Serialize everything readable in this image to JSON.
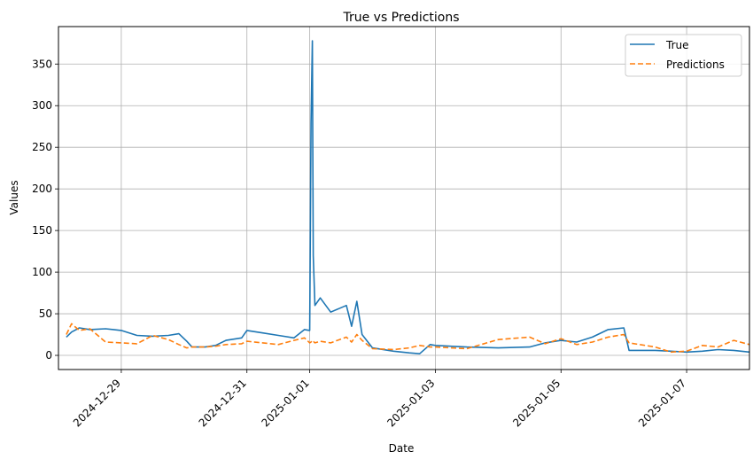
{
  "chart_data": {
    "type": "line",
    "title": "True vs Predictions",
    "xlabel": "Date",
    "ylabel": "Values",
    "grid": true,
    "legend_placement": "top-right",
    "x_range": [
      "2024-12-28",
      "2025-01-08"
    ],
    "ylim": [
      -17,
      395
    ],
    "x_ticks": [
      "2024-12-29",
      "2024-12-31",
      "2025-01-01",
      "2025-01-03",
      "2025-01-05",
      "2025-01-07"
    ],
    "y_ticks": [
      "0",
      "50",
      "100",
      "150",
      "200",
      "250",
      "300",
      "350"
    ],
    "series": [
      {
        "name": "True",
        "color": "#1f77b4",
        "dash": "solid",
        "points": [
          [
            "2024-12-28 03:00",
            22
          ],
          [
            "2024-12-28 05:00",
            28
          ],
          [
            "2024-12-28 08:00",
            33
          ],
          [
            "2024-12-28 12:00",
            31
          ],
          [
            "2024-12-28 18:00",
            32
          ],
          [
            "2024-12-29 00:00",
            30
          ],
          [
            "2024-12-29 06:00",
            24
          ],
          [
            "2024-12-29 12:00",
            23
          ],
          [
            "2024-12-29 18:00",
            24
          ],
          [
            "2024-12-29 22:00",
            26
          ],
          [
            "2024-12-30 01:00",
            17
          ],
          [
            "2024-12-30 03:00",
            10
          ],
          [
            "2024-12-30 08:00",
            10
          ],
          [
            "2024-12-30 12:00",
            12
          ],
          [
            "2024-12-30 16:00",
            18
          ],
          [
            "2024-12-30 22:00",
            21
          ],
          [
            "2024-12-31 00:00",
            30
          ],
          [
            "2024-12-31 06:00",
            27
          ],
          [
            "2024-12-31 12:00",
            24
          ],
          [
            "2024-12-31 18:00",
            21
          ],
          [
            "2024-12-31 22:00",
            31
          ],
          [
            "2025-01-01 00:00",
            30
          ],
          [
            "2025-01-01 00:30",
            280
          ],
          [
            "2025-01-01 01:00",
            378
          ],
          [
            "2025-01-01 01:20",
            120
          ],
          [
            "2025-01-01 02:00",
            60
          ],
          [
            "2025-01-01 04:00",
            69
          ],
          [
            "2025-01-01 08:00",
            52
          ],
          [
            "2025-01-01 14:00",
            60
          ],
          [
            "2025-01-01 16:00",
            35
          ],
          [
            "2025-01-01 18:00",
            65
          ],
          [
            "2025-01-01 20:00",
            25
          ],
          [
            "2025-01-02 00:00",
            9
          ],
          [
            "2025-01-02 08:00",
            5
          ],
          [
            "2025-01-02 14:00",
            3
          ],
          [
            "2025-01-02 18:00",
            2
          ],
          [
            "2025-01-02 22:00",
            13
          ],
          [
            "2025-01-03 00:00",
            12
          ],
          [
            "2025-01-03 12:00",
            10
          ],
          [
            "2025-01-04 00:00",
            9
          ],
          [
            "2025-01-04 12:00",
            10
          ],
          [
            "2025-01-04 18:00",
            15
          ],
          [
            "2025-01-05 00:00",
            18
          ],
          [
            "2025-01-05 06:00",
            16
          ],
          [
            "2025-01-05 12:00",
            22
          ],
          [
            "2025-01-05 18:00",
            31
          ],
          [
            "2025-01-06 00:00",
            33
          ],
          [
            "2025-01-06 02:00",
            6
          ],
          [
            "2025-01-06 12:00",
            6
          ],
          [
            "2025-01-06 18:00",
            5
          ],
          [
            "2025-01-07 00:00",
            4
          ],
          [
            "2025-01-07 06:00",
            5
          ],
          [
            "2025-01-07 12:00",
            7
          ],
          [
            "2025-01-07 18:00",
            6
          ],
          [
            "2025-01-08 00:00",
            4
          ]
        ]
      },
      {
        "name": "Predictions",
        "color": "#ff7f0e",
        "dash": "dashed",
        "points": [
          [
            "2024-12-28 03:00",
            25
          ],
          [
            "2024-12-28 05:00",
            38
          ],
          [
            "2024-12-28 08:00",
            30
          ],
          [
            "2024-12-28 12:00",
            32
          ],
          [
            "2024-12-28 18:00",
            16
          ],
          [
            "2024-12-29 00:00",
            15
          ],
          [
            "2024-12-29 06:00",
            14
          ],
          [
            "2024-12-29 12:00",
            24
          ],
          [
            "2024-12-29 18:00",
            19
          ],
          [
            "2024-12-29 22:00",
            13
          ],
          [
            "2024-12-30 01:00",
            9
          ],
          [
            "2024-12-30 03:00",
            10
          ],
          [
            "2024-12-30 08:00",
            10
          ],
          [
            "2024-12-30 12:00",
            11
          ],
          [
            "2024-12-30 16:00",
            13
          ],
          [
            "2024-12-30 22:00",
            14
          ],
          [
            "2024-12-31 00:00",
            17
          ],
          [
            "2024-12-31 06:00",
            15
          ],
          [
            "2024-12-31 12:00",
            13
          ],
          [
            "2024-12-31 18:00",
            18
          ],
          [
            "2024-12-31 22:00",
            21
          ],
          [
            "2025-01-01 00:00",
            15
          ],
          [
            "2025-01-01 00:30",
            16
          ],
          [
            "2025-01-01 01:00",
            18
          ],
          [
            "2025-01-01 01:20",
            17
          ],
          [
            "2025-01-01 02:00",
            15
          ],
          [
            "2025-01-01 04:00",
            17
          ],
          [
            "2025-01-01 08:00",
            15
          ],
          [
            "2025-01-01 14:00",
            22
          ],
          [
            "2025-01-01 16:00",
            16
          ],
          [
            "2025-01-01 18:00",
            25
          ],
          [
            "2025-01-01 20:00",
            18
          ],
          [
            "2025-01-02 00:00",
            8
          ],
          [
            "2025-01-02 08:00",
            7
          ],
          [
            "2025-01-02 14:00",
            9
          ],
          [
            "2025-01-02 18:00",
            12
          ],
          [
            "2025-01-02 22:00",
            10
          ],
          [
            "2025-01-03 00:00",
            10
          ],
          [
            "2025-01-03 12:00",
            8
          ],
          [
            "2025-01-04 00:00",
            19
          ],
          [
            "2025-01-04 12:00",
            22
          ],
          [
            "2025-01-04 18:00",
            14
          ],
          [
            "2025-01-05 00:00",
            20
          ],
          [
            "2025-01-05 06:00",
            13
          ],
          [
            "2025-01-05 12:00",
            16
          ],
          [
            "2025-01-05 18:00",
            22
          ],
          [
            "2025-01-06 00:00",
            25
          ],
          [
            "2025-01-06 02:00",
            15
          ],
          [
            "2025-01-06 12:00",
            10
          ],
          [
            "2025-01-06 18:00",
            4
          ],
          [
            "2025-01-07 00:00",
            5
          ],
          [
            "2025-01-07 06:00",
            12
          ],
          [
            "2025-01-07 12:00",
            10
          ],
          [
            "2025-01-07 18:00",
            18
          ],
          [
            "2025-01-08 00:00",
            13
          ]
        ]
      }
    ]
  }
}
